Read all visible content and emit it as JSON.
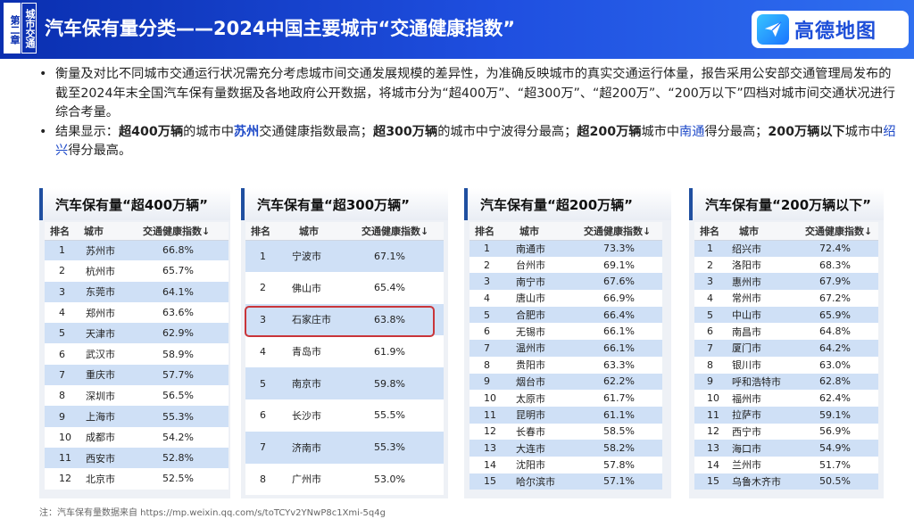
{
  "header": {
    "chapter": "第二章",
    "topic": "城市交通",
    "title": "汽车保有量分类——2024中国主要城市“交通健康指数”",
    "logo_text": "高德地图"
  },
  "bullets": [
    {
      "text": "衡量及对比不同城市交通运行状况需充分考虑城市间交通发展规模的差异性，为准确反映城市的真实交通运行体量，报告采用公安部交通管理局发布的截至2024年末全国汽车保有量数据及各地政府公开数据，将城市分为“超400万”、“超300万”、“超200万”、“200万以下”四档对城市间交通状况进行综合考量。"
    },
    {
      "p1": "结果显示：",
      "p2": "超400万辆",
      "p3": "的城市中",
      "p4": "苏州",
      "p5": "交通健康指数最高；",
      "p6": "超300万辆",
      "p7": "的城市中宁波得分最高；",
      "p8": "超200万辆",
      "p9": "城市中",
      "p10": "南通",
      "p11": "得分最高；",
      "p12": "200万辆以下",
      "p13": "城市中",
      "p14": "绍兴",
      "p15": "得分最高。"
    }
  ],
  "tables": [
    {
      "title": "汽车保有量“超400万辆”",
      "headers": [
        "排名",
        "城市",
        "交通健康指数↓"
      ],
      "rows": [
        [
          "1",
          "苏州市",
          "66.8%"
        ],
        [
          "2",
          "杭州市",
          "65.7%"
        ],
        [
          "3",
          "东莞市",
          "64.1%"
        ],
        [
          "4",
          "郑州市",
          "63.6%"
        ],
        [
          "5",
          "天津市",
          "62.9%"
        ],
        [
          "6",
          "武汉市",
          "58.9%"
        ],
        [
          "7",
          "重庆市",
          "57.7%"
        ],
        [
          "8",
          "深圳市",
          "56.5%"
        ],
        [
          "9",
          "上海市",
          "55.3%"
        ],
        [
          "10",
          "成都市",
          "54.2%"
        ],
        [
          "11",
          "西安市",
          "52.8%"
        ],
        [
          "12",
          "北京市",
          "52.5%"
        ]
      ]
    },
    {
      "title": "汽车保有量“超300万辆”",
      "headers": [
        "排名",
        "城市",
        "交通健康指数↓"
      ],
      "rows": [
        [
          "1",
          "宁波市",
          "67.1%"
        ],
        [
          "2",
          "佛山市",
          "65.4%"
        ],
        [
          "3",
          "石家庄市",
          "63.8%"
        ],
        [
          "4",
          "青岛市",
          "61.9%"
        ],
        [
          "5",
          "南京市",
          "59.8%"
        ],
        [
          "6",
          "长沙市",
          "55.5%"
        ],
        [
          "7",
          "济南市",
          "55.3%"
        ],
        [
          "8",
          "广州市",
          "53.0%"
        ]
      ]
    },
    {
      "title": "汽车保有量“超200万辆”",
      "headers": [
        "排名",
        "城市",
        "交通健康指数↓"
      ],
      "rows": [
        [
          "1",
          "南通市",
          "73.3%"
        ],
        [
          "2",
          "台州市",
          "69.1%"
        ],
        [
          "3",
          "南宁市",
          "67.6%"
        ],
        [
          "4",
          "唐山市",
          "66.9%"
        ],
        [
          "5",
          "合肥市",
          "66.4%"
        ],
        [
          "6",
          "无锡市",
          "66.1%"
        ],
        [
          "7",
          "温州市",
          "66.1%"
        ],
        [
          "8",
          "贵阳市",
          "63.3%"
        ],
        [
          "9",
          "烟台市",
          "62.2%"
        ],
        [
          "10",
          "太原市",
          "61.7%"
        ],
        [
          "11",
          "昆明市",
          "61.1%"
        ],
        [
          "12",
          "长春市",
          "58.5%"
        ],
        [
          "13",
          "大连市",
          "58.2%"
        ],
        [
          "14",
          "沈阳市",
          "57.8%"
        ],
        [
          "15",
          "哈尔滨市",
          "57.1%"
        ]
      ]
    },
    {
      "title": "汽车保有量“200万辆以下”",
      "headers": [
        "排名",
        "城市",
        "交通健康指数↓"
      ],
      "rows": [
        [
          "1",
          "绍兴市",
          "72.4%"
        ],
        [
          "2",
          "洛阳市",
          "68.3%"
        ],
        [
          "3",
          "惠州市",
          "67.9%"
        ],
        [
          "4",
          "常州市",
          "67.2%"
        ],
        [
          "5",
          "中山市",
          "65.9%"
        ],
        [
          "6",
          "南昌市",
          "64.8%"
        ],
        [
          "7",
          "厦门市",
          "64.2%"
        ],
        [
          "8",
          "银川市",
          "63.0%"
        ],
        [
          "9",
          "呼和浩特市",
          "62.8%"
        ],
        [
          "10",
          "福州市",
          "62.4%"
        ],
        [
          "11",
          "拉萨市",
          "59.1%"
        ],
        [
          "12",
          "西宁市",
          "56.9%"
        ],
        [
          "13",
          "海口市",
          "54.9%"
        ],
        [
          "14",
          "兰州市",
          "51.7%"
        ],
        [
          "15",
          "乌鲁木齐市",
          "50.5%"
        ]
      ]
    }
  ],
  "footnote": "注：汽车保有量数据来自 https://mp.weixin.qq.com/s/toTCYv2YNwP8c1Xmi-5q4g",
  "colors": {
    "header_blue": "#1f4fe0",
    "row_blue": "#cfe0f6",
    "highlight_red": "#c9353a",
    "city_link_blue": "#1d49c8"
  }
}
